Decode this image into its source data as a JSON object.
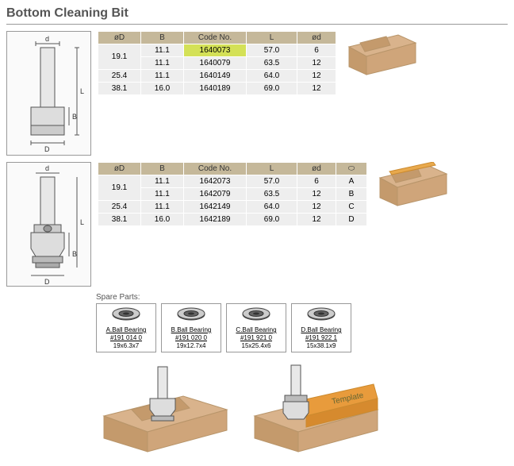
{
  "title": "Bottom Cleaning Bit",
  "table1": {
    "headers": [
      "øD",
      "B",
      "Code No.",
      "L",
      "ød"
    ],
    "rows": [
      {
        "d": "19.1",
        "b": "11.1",
        "code": "1640073",
        "l": "57.0",
        "sd": "6",
        "span": 2,
        "hl": true
      },
      {
        "d": "",
        "b": "11.1",
        "code": "1640079",
        "l": "63.5",
        "sd": "12"
      },
      {
        "d": "25.4",
        "b": "11.1",
        "code": "1640149",
        "l": "64.0",
        "sd": "12"
      },
      {
        "d": "38.1",
        "b": "16.0",
        "code": "1640189",
        "l": "69.0",
        "sd": "12"
      }
    ]
  },
  "table2": {
    "headers": [
      "øD",
      "B",
      "Code No.",
      "L",
      "ød",
      "⬭"
    ],
    "rows": [
      {
        "d": "19.1",
        "b": "11.1",
        "code": "1642073",
        "l": "57.0",
        "sd": "6",
        "br": "A",
        "span": 2
      },
      {
        "d": "",
        "b": "11.1",
        "code": "1642079",
        "l": "63.5",
        "sd": "12",
        "br": "B"
      },
      {
        "d": "25.4",
        "b": "11.1",
        "code": "1642149",
        "l": "64.0",
        "sd": "12",
        "br": "C"
      },
      {
        "d": "38.1",
        "b": "16.0",
        "code": "1642189",
        "l": "69.0",
        "sd": "12",
        "br": "D"
      }
    ]
  },
  "spare_label": "Spare Parts:",
  "bearings": [
    {
      "name": "A.Ball Bearing",
      "code": "#191 014 0",
      "size": "19x6.3x7"
    },
    {
      "name": "B.Ball Bearing",
      "code": "#191 020 0",
      "size": "19x12.7x4"
    },
    {
      "name": "C.Ball Bearing",
      "code": "#191 921 0",
      "size": "15x25.4x6"
    },
    {
      "name": "D.Ball Bearing",
      "code": "#191 922 1",
      "size": "15x38.1x9"
    }
  ],
  "template_label": "Template",
  "diag_labels": {
    "d": "d",
    "D": "D",
    "B": "B",
    "L": "L"
  },
  "colors": {
    "header_bg": "#c5b89a",
    "cell_bg": "#eee",
    "highlight": "#d4e157",
    "wood": "#d9b38c",
    "wood_dark": "#c49a6c",
    "template": "#e89b3c"
  }
}
